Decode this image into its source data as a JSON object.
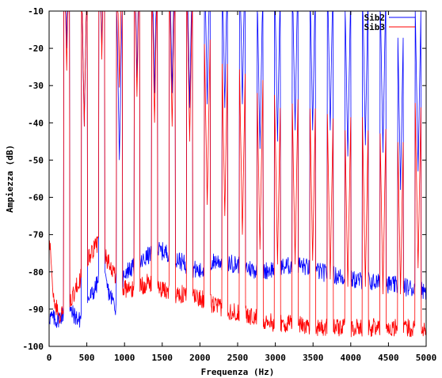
{
  "chart_data": {
    "type": "line",
    "title": "",
    "xlabel": "Frequenza (Hz)",
    "ylabel": "Ampiezza (dB)",
    "xlim": [
      0,
      5000
    ],
    "ylim": [
      -100,
      -10
    ],
    "x_ticks": [
      "0",
      "500",
      "1000",
      "1500",
      "2000",
      "2500",
      "3000",
      "3500",
      "4000",
      "4500",
      "5000"
    ],
    "y_ticks": [
      "-100",
      "-90",
      "-80",
      "-70",
      "-60",
      "-50",
      "-40",
      "-30",
      "-20",
      "-10"
    ],
    "grid": false,
    "legend_position": "top-right",
    "series": [
      {
        "name": "Sib2",
        "color": "#0000ff",
        "floor": [
          [
            0,
            -92
          ],
          [
            100,
            -93
          ],
          [
            250,
            -90
          ],
          [
            400,
            -93
          ],
          [
            500,
            -88
          ],
          [
            600,
            -85
          ],
          [
            700,
            -80
          ],
          [
            800,
            -86
          ],
          [
            900,
            -90
          ],
          [
            1000,
            -80
          ],
          [
            1200,
            -78
          ],
          [
            1400,
            -74
          ],
          [
            1600,
            -75
          ],
          [
            1800,
            -78
          ],
          [
            2000,
            -80
          ],
          [
            2200,
            -77
          ],
          [
            2500,
            -78
          ],
          [
            2800,
            -80
          ],
          [
            3000,
            -79
          ],
          [
            3300,
            -78
          ],
          [
            3600,
            -80
          ],
          [
            4000,
            -82
          ],
          [
            4400,
            -83
          ],
          [
            4700,
            -84
          ],
          [
            5000,
            -85
          ]
        ],
        "peaks": [
          [
            233,
            -20
          ],
          [
            466,
            -41
          ],
          [
            699,
            -20.5
          ],
          [
            932,
            -50
          ],
          [
            1165,
            -28
          ],
          [
            1398,
            -32
          ],
          [
            1631,
            -32
          ],
          [
            1864,
            -36
          ],
          [
            2097,
            -35
          ],
          [
            2330,
            -36
          ],
          [
            2563,
            -35
          ],
          [
            2796,
            -47
          ],
          [
            3029,
            -45
          ],
          [
            3262,
            -42
          ],
          [
            3495,
            -42
          ],
          [
            3728,
            -42
          ],
          [
            3961,
            -49
          ],
          [
            4194,
            -46
          ],
          [
            4427,
            -48
          ],
          [
            4660,
            -58
          ],
          [
            4893,
            -53
          ]
        ]
      },
      {
        "name": "Sib3",
        "color": "#ff0000",
        "floor": [
          [
            0,
            -70
          ],
          [
            60,
            -88
          ],
          [
            150,
            -92
          ],
          [
            300,
            -87
          ],
          [
            450,
            -80
          ],
          [
            550,
            -75
          ],
          [
            650,
            -72
          ],
          [
            800,
            -78
          ],
          [
            950,
            -84
          ],
          [
            1100,
            -85
          ],
          [
            1300,
            -83
          ],
          [
            1500,
            -85
          ],
          [
            1700,
            -86
          ],
          [
            1900,
            -86
          ],
          [
            2100,
            -88
          ],
          [
            2300,
            -90
          ],
          [
            2500,
            -91
          ],
          [
            2700,
            -92
          ],
          [
            3000,
            -94
          ],
          [
            3300,
            -94
          ],
          [
            3600,
            -95
          ],
          [
            4000,
            -95
          ],
          [
            4400,
            -95
          ],
          [
            4800,
            -95
          ],
          [
            5000,
            -96
          ]
        ],
        "peaks": [
          [
            233,
            -26
          ],
          [
            466,
            -41
          ],
          [
            699,
            -23
          ],
          [
            932,
            -30.5
          ],
          [
            1165,
            -33
          ],
          [
            1398,
            -40
          ],
          [
            1631,
            -41
          ],
          [
            1864,
            -45
          ],
          [
            2097,
            -62
          ],
          [
            2330,
            -65
          ],
          [
            2563,
            -70
          ],
          [
            2796,
            -74
          ],
          [
            3029,
            -78
          ],
          [
            3262,
            -78
          ],
          [
            3495,
            -77
          ],
          [
            3728,
            -82
          ],
          [
            3961,
            -84
          ],
          [
            4194,
            -84
          ],
          [
            4427,
            -86
          ],
          [
            4660,
            -86
          ],
          [
            4893,
            -79
          ]
        ]
      }
    ]
  }
}
